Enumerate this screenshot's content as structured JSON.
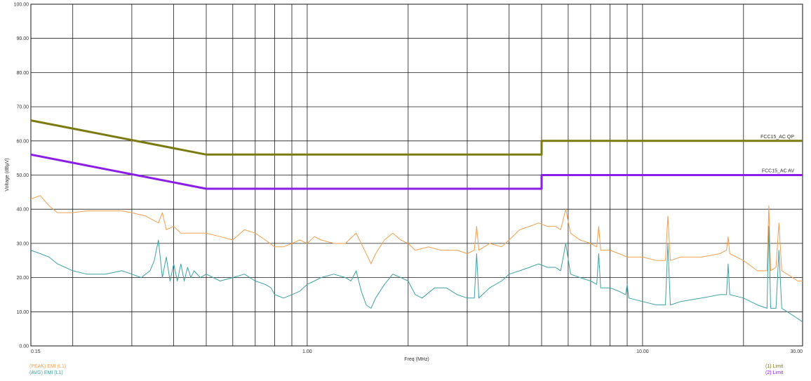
{
  "chart_data": {
    "type": "line",
    "title": "",
    "xlabel": "Freq (MHz)",
    "ylabel": "Voltage (dBµV)",
    "x_scale": "log",
    "xlim": [
      0.15,
      30
    ],
    "ylim": [
      0,
      100
    ],
    "grid": true,
    "x_tick_labels": [
      {
        "value": 0.15,
        "label": "0.15"
      },
      {
        "value": 1.0,
        "label": "1.00"
      },
      {
        "value": 10.0,
        "label": "10.00"
      },
      {
        "value": 30.0,
        "label": "30.00"
      }
    ],
    "x_gridlines": [
      0.15,
      0.2,
      0.3,
      0.4,
      0.5,
      0.6,
      0.7,
      0.8,
      0.9,
      1,
      2,
      3,
      4,
      5,
      6,
      7,
      8,
      9,
      10,
      20,
      30
    ],
    "y_ticks": [
      {
        "value": 0,
        "label": "0.00"
      },
      {
        "value": 10,
        "label": "10.00"
      },
      {
        "value": 20,
        "label": "20.00"
      },
      {
        "value": 30,
        "label": "30.00"
      },
      {
        "value": 40,
        "label": "40.00"
      },
      {
        "value": 50,
        "label": "50.00"
      },
      {
        "value": 60,
        "label": "60.00"
      },
      {
        "value": 70,
        "label": "70.00"
      },
      {
        "value": 80,
        "label": "80.00"
      },
      {
        "value": 90,
        "label": "90.00"
      },
      {
        "value": 100,
        "label": "100.00"
      }
    ],
    "series": [
      {
        "name": "FCC15_AC QP",
        "color": "#7a7a10",
        "style": "limit",
        "points": [
          [
            0.15,
            66
          ],
          [
            0.5,
            56
          ],
          [
            5.0,
            56
          ],
          [
            5.0,
            60
          ],
          [
            30,
            60
          ]
        ]
      },
      {
        "name": "FCC15_AC AV",
        "color": "#8a1ee6",
        "style": "limit",
        "points": [
          [
            0.15,
            56
          ],
          [
            0.5,
            46
          ],
          [
            5.0,
            46
          ],
          [
            5.0,
            50
          ],
          [
            30,
            50
          ]
        ]
      },
      {
        "name": "(PEAK) EMI (L1)",
        "color": "#f0a050",
        "style": "trace",
        "points": [
          [
            0.15,
            43
          ],
          [
            0.16,
            44
          ],
          [
            0.17,
            41
          ],
          [
            0.18,
            39
          ],
          [
            0.2,
            39
          ],
          [
            0.22,
            39.5
          ],
          [
            0.25,
            39.5
          ],
          [
            0.28,
            39.5
          ],
          [
            0.3,
            39
          ],
          [
            0.33,
            38
          ],
          [
            0.36,
            36
          ],
          [
            0.37,
            39
          ],
          [
            0.38,
            34
          ],
          [
            0.4,
            35
          ],
          [
            0.42,
            33
          ],
          [
            0.45,
            33
          ],
          [
            0.5,
            33
          ],
          [
            0.55,
            32
          ],
          [
            0.6,
            31
          ],
          [
            0.65,
            34
          ],
          [
            0.7,
            33
          ],
          [
            0.75,
            31
          ],
          [
            0.8,
            29
          ],
          [
            0.85,
            29
          ],
          [
            0.9,
            30
          ],
          [
            0.95,
            31
          ],
          [
            1.0,
            30
          ],
          [
            1.05,
            32
          ],
          [
            1.1,
            31
          ],
          [
            1.2,
            30
          ],
          [
            1.3,
            30
          ],
          [
            1.4,
            33
          ],
          [
            1.5,
            27
          ],
          [
            1.55,
            24
          ],
          [
            1.6,
            27
          ],
          [
            1.7,
            31
          ],
          [
            1.8,
            33
          ],
          [
            1.9,
            31
          ],
          [
            2.0,
            30
          ],
          [
            2.1,
            28
          ],
          [
            2.3,
            29
          ],
          [
            2.5,
            28
          ],
          [
            2.8,
            28
          ],
          [
            3.0,
            27
          ],
          [
            3.15,
            28
          ],
          [
            3.2,
            35
          ],
          [
            3.25,
            28
          ],
          [
            3.5,
            30
          ],
          [
            3.8,
            29
          ],
          [
            4.0,
            31
          ],
          [
            4.3,
            34
          ],
          [
            4.6,
            35
          ],
          [
            4.9,
            36
          ],
          [
            5.2,
            35
          ],
          [
            5.5,
            35
          ],
          [
            5.7,
            34
          ],
          [
            5.9,
            40
          ],
          [
            6.1,
            33
          ],
          [
            6.5,
            31
          ],
          [
            7.0,
            30
          ],
          [
            7.3,
            29
          ],
          [
            7.4,
            35
          ],
          [
            7.5,
            28
          ],
          [
            8.0,
            28
          ],
          [
            8.5,
            27
          ],
          [
            9.0,
            26
          ],
          [
            10.0,
            26
          ],
          [
            11.0,
            25
          ],
          [
            11.7,
            25
          ],
          [
            11.9,
            38
          ],
          [
            12.1,
            25
          ],
          [
            13.0,
            26
          ],
          [
            15.0,
            26
          ],
          [
            17.0,
            27
          ],
          [
            17.8,
            28
          ],
          [
            18.0,
            32
          ],
          [
            18.2,
            27
          ],
          [
            20.0,
            25
          ],
          [
            22.0,
            22
          ],
          [
            23.5,
            22
          ],
          [
            23.8,
            41
          ],
          [
            24.1,
            22
          ],
          [
            25.0,
            23
          ],
          [
            25.5,
            36
          ],
          [
            26.0,
            22
          ],
          [
            27.0,
            21
          ],
          [
            28.0,
            20
          ],
          [
            29.0,
            19
          ],
          [
            30.0,
            19
          ]
        ]
      },
      {
        "name": "(AVG) EMI (L1)",
        "color": "#40a0a0",
        "style": "trace",
        "points": [
          [
            0.15,
            28
          ],
          [
            0.16,
            27
          ],
          [
            0.17,
            26
          ],
          [
            0.18,
            24
          ],
          [
            0.2,
            22
          ],
          [
            0.22,
            21
          ],
          [
            0.25,
            21
          ],
          [
            0.28,
            22
          ],
          [
            0.3,
            21
          ],
          [
            0.32,
            20
          ],
          [
            0.34,
            22
          ],
          [
            0.35,
            25
          ],
          [
            0.36,
            31
          ],
          [
            0.37,
            20
          ],
          [
            0.38,
            26
          ],
          [
            0.39,
            19
          ],
          [
            0.4,
            24
          ],
          [
            0.41,
            19
          ],
          [
            0.42,
            24
          ],
          [
            0.43,
            19
          ],
          [
            0.44,
            23
          ],
          [
            0.45,
            20
          ],
          [
            0.46,
            22
          ],
          [
            0.48,
            20
          ],
          [
            0.5,
            21
          ],
          [
            0.55,
            19
          ],
          [
            0.6,
            20
          ],
          [
            0.65,
            21
          ],
          [
            0.7,
            19
          ],
          [
            0.75,
            18
          ],
          [
            0.78,
            17
          ],
          [
            0.8,
            15
          ],
          [
            0.85,
            14
          ],
          [
            0.9,
            15
          ],
          [
            0.95,
            16
          ],
          [
            1.0,
            18
          ],
          [
            1.05,
            19
          ],
          [
            1.1,
            20
          ],
          [
            1.2,
            21
          ],
          [
            1.3,
            20
          ],
          [
            1.35,
            19
          ],
          [
            1.4,
            22
          ],
          [
            1.45,
            16
          ],
          [
            1.5,
            12
          ],
          [
            1.55,
            11
          ],
          [
            1.6,
            14
          ],
          [
            1.7,
            18
          ],
          [
            1.8,
            21
          ],
          [
            1.9,
            20
          ],
          [
            2.0,
            19
          ],
          [
            2.1,
            15
          ],
          [
            2.2,
            14
          ],
          [
            2.4,
            17
          ],
          [
            2.6,
            17
          ],
          [
            2.8,
            15
          ],
          [
            3.0,
            14
          ],
          [
            3.15,
            14
          ],
          [
            3.2,
            27
          ],
          [
            3.25,
            14
          ],
          [
            3.5,
            17
          ],
          [
            3.8,
            19
          ],
          [
            4.0,
            21
          ],
          [
            4.3,
            22
          ],
          [
            4.6,
            23
          ],
          [
            4.9,
            24
          ],
          [
            5.2,
            23
          ],
          [
            5.5,
            23
          ],
          [
            5.7,
            22
          ],
          [
            5.9,
            30
          ],
          [
            6.1,
            21
          ],
          [
            6.5,
            20
          ],
          [
            7.0,
            19
          ],
          [
            7.3,
            18
          ],
          [
            7.4,
            27
          ],
          [
            7.5,
            17
          ],
          [
            8.0,
            17
          ],
          [
            8.5,
            16
          ],
          [
            8.9,
            15
          ],
          [
            9.0,
            18
          ],
          [
            9.1,
            14
          ],
          [
            10.0,
            13
          ],
          [
            11.0,
            12
          ],
          [
            11.7,
            12
          ],
          [
            11.9,
            30
          ],
          [
            12.1,
            12
          ],
          [
            13.0,
            13
          ],
          [
            15.0,
            14
          ],
          [
            17.0,
            15
          ],
          [
            17.8,
            15
          ],
          [
            18.0,
            24
          ],
          [
            18.2,
            15
          ],
          [
            20.0,
            14
          ],
          [
            22.0,
            12
          ],
          [
            23.5,
            11
          ],
          [
            23.8,
            35
          ],
          [
            24.1,
            11
          ],
          [
            25.0,
            11
          ],
          [
            25.5,
            28
          ],
          [
            26.0,
            11
          ],
          [
            27.0,
            10
          ],
          [
            28.0,
            9
          ],
          [
            29.0,
            8
          ],
          [
            30.0,
            7
          ]
        ]
      }
    ],
    "limit_labels": [
      {
        "text": "FCC15_AC QP",
        "y": 60
      },
      {
        "text": "FCC15_AC AV",
        "y": 50
      }
    ],
    "legend": {
      "left": [
        {
          "text": "(PEAK) EMI (L1)",
          "color": "#f0a050"
        },
        {
          "text": "(AVG) EMI (L1)",
          "color": "#40a0a0"
        }
      ],
      "right": [
        {
          "text": "(1) Limit",
          "color": "#7a7a10"
        },
        {
          "text": "(2) Limit",
          "color": "#8a1ee6"
        }
      ]
    }
  }
}
